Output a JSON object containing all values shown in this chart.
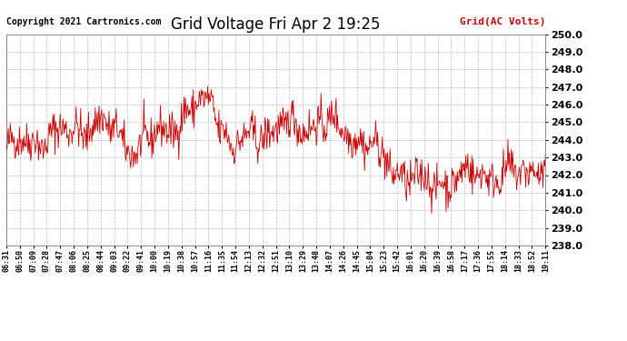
{
  "title": "Grid Voltage Fri Apr 2 19:25",
  "copyright": "Copyright 2021 Cartronics.com",
  "legend_label": "Grid(AC Volts)",
  "ylim": [
    238.0,
    250.0
  ],
  "ytick_min": 238.0,
  "ytick_max": 250.0,
  "ytick_step": 1.0,
  "line_color": "#cc0000",
  "background_color": "#ffffff",
  "grid_color": "#aaaaaa",
  "x_labels": [
    "06:31",
    "06:50",
    "07:09",
    "07:28",
    "07:47",
    "08:06",
    "08:25",
    "08:44",
    "09:03",
    "09:22",
    "09:41",
    "10:00",
    "10:19",
    "10:38",
    "10:57",
    "11:16",
    "11:35",
    "11:54",
    "12:13",
    "12:32",
    "12:51",
    "13:10",
    "13:29",
    "13:48",
    "14:07",
    "14:26",
    "14:45",
    "15:04",
    "15:23",
    "15:42",
    "16:01",
    "16:20",
    "16:39",
    "16:58",
    "17:17",
    "17:36",
    "17:55",
    "18:14",
    "18:33",
    "18:52",
    "19:11"
  ],
  "seed": 42,
  "n_points": 820,
  "title_fontsize": 12,
  "copyright_fontsize": 7,
  "legend_fontsize": 8,
  "ytick_fontsize": 8,
  "xtick_fontsize": 6
}
